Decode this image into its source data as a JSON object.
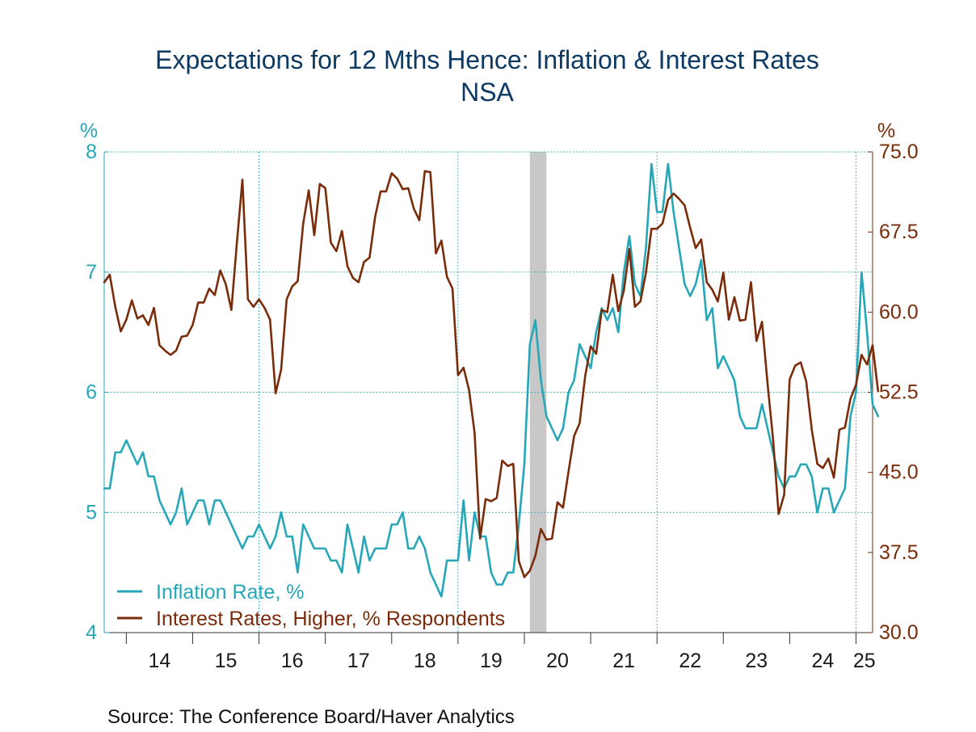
{
  "chart_data": {
    "type": "line",
    "title": "Expectations for 12 Mths Hence: Inflation & Interest Rates",
    "subtitle": "NSA",
    "left_axis": {
      "unit": "%",
      "ylim": [
        4,
        8
      ],
      "ticks": [
        "8",
        "7",
        "6",
        "5",
        "4"
      ]
    },
    "right_axis": {
      "unit": "%",
      "ylim": [
        30,
        75
      ],
      "ticks": [
        "75.0",
        "67.5",
        "60.0",
        "52.5",
        "45.0",
        "37.5",
        "30.0"
      ]
    },
    "x_tick_labels": [
      "14",
      "15",
      "16",
      "17",
      "18",
      "19",
      "20",
      "21",
      "22",
      "23",
      "24",
      "25"
    ],
    "x_range": [
      "2013-09",
      "2025-04"
    ],
    "recession_shading": [
      [
        "2020-02",
        "2020-04"
      ]
    ],
    "grid": true,
    "legend_position": "bottom-left",
    "series": [
      {
        "name": "Inflation Rate, %",
        "axis": "left",
        "color": "#26a7b8",
        "start": "2013-09",
        "frequency": "monthly",
        "values": [
          5.2,
          5.2,
          5.5,
          5.5,
          5.6,
          5.5,
          5.4,
          5.5,
          5.3,
          5.3,
          5.1,
          5.0,
          4.9,
          5.0,
          5.2,
          4.9,
          5.0,
          5.1,
          5.1,
          4.9,
          5.1,
          5.1,
          5.0,
          4.9,
          4.8,
          4.7,
          4.8,
          4.8,
          4.9,
          4.8,
          4.7,
          4.8,
          5.0,
          4.8,
          4.8,
          4.5,
          4.9,
          4.8,
          4.7,
          4.7,
          4.7,
          4.6,
          4.6,
          4.5,
          4.9,
          4.7,
          4.5,
          4.8,
          4.6,
          4.7,
          4.7,
          4.7,
          4.9,
          4.9,
          5.0,
          4.7,
          4.7,
          4.8,
          4.7,
          4.5,
          4.4,
          4.3,
          4.6,
          4.6,
          4.6,
          5.1,
          4.6,
          5.0,
          4.8,
          4.8,
          4.5,
          4.4,
          4.4,
          4.5,
          4.5,
          4.9,
          5.4,
          6.4,
          6.6,
          6.1,
          5.8,
          5.7,
          5.6,
          5.7,
          6.0,
          6.1,
          6.4,
          6.3,
          6.2,
          6.5,
          6.7,
          6.6,
          6.7,
          6.5,
          7.0,
          7.3,
          6.9,
          6.8,
          7.2,
          7.9,
          7.5,
          7.5,
          7.9,
          7.5,
          7.2,
          6.9,
          6.8,
          6.9,
          7.1,
          6.6,
          6.7,
          6.2,
          6.3,
          6.2,
          6.1,
          5.8,
          5.7,
          5.7,
          5.7,
          5.9,
          5.7,
          5.5,
          5.3,
          5.2,
          5.3,
          5.3,
          5.4,
          5.4,
          5.3,
          5.0,
          5.2,
          5.2,
          5.0,
          5.1,
          5.2,
          5.8,
          6.0,
          7.0,
          6.5,
          5.9,
          5.8
        ]
      },
      {
        "name": "Interest Rates, Higher, % Respondents",
        "axis": "right",
        "color": "#7a2c0a",
        "start": "2013-09",
        "frequency": "monthly",
        "values": [
          62.8,
          63.5,
          60.5,
          58.2,
          59.3,
          61.1,
          59.4,
          59.7,
          58.8,
          60.4,
          56.9,
          56.4,
          56.0,
          56.4,
          57.7,
          57.8,
          58.8,
          60.9,
          60.9,
          62.2,
          61.6,
          63.9,
          62.6,
          60.2,
          66.5,
          72.4,
          61.2,
          60.5,
          61.2,
          60.4,
          59.3,
          52.4,
          54.6,
          61.2,
          62.4,
          62.9,
          68.3,
          71.4,
          67.2,
          72.0,
          71.6,
          66.5,
          65.7,
          67.6,
          64.3,
          63.2,
          62.8,
          64.7,
          65.1,
          68.9,
          71.3,
          71.3,
          73.0,
          72.5,
          71.5,
          71.6,
          69.7,
          68.6,
          73.2,
          73.1,
          65.5,
          66.7,
          63.3,
          62.2,
          54.1,
          54.8,
          52.7,
          48.7,
          38.8,
          42.5,
          42.3,
          42.6,
          46.1,
          45.6,
          45.8,
          36.7,
          35.2,
          35.8,
          37.2,
          39.7,
          38.7,
          38.8,
          42.2,
          41.7,
          45.1,
          48.4,
          49.6,
          54.0,
          56.8,
          56.1,
          60.2,
          60.0,
          63.5,
          60.1,
          62.0,
          65.9,
          60.5,
          61.0,
          63.7,
          67.8,
          67.8,
          68.3,
          70.5,
          71.1,
          70.6,
          70.0,
          67.9,
          66.0,
          66.8,
          62.8,
          62.1,
          61.0,
          63.7,
          59.3,
          61.4,
          59.2,
          59.3,
          62.8,
          57.3,
          59.1,
          53.3,
          48.1,
          41.1,
          42.9,
          53.7,
          55.0,
          55.3,
          53.5,
          49.0,
          45.8,
          45.4,
          46.3,
          44.5,
          49.0,
          49.2,
          51.9,
          53.2,
          56.0,
          55.1,
          56.9,
          52.6
        ]
      }
    ]
  },
  "legend": {
    "item1": "Inflation Rate, %",
    "item2": "Interest Rates, Higher, % Respondents"
  },
  "source": "Source:  The Conference Board/Haver Analytics"
}
